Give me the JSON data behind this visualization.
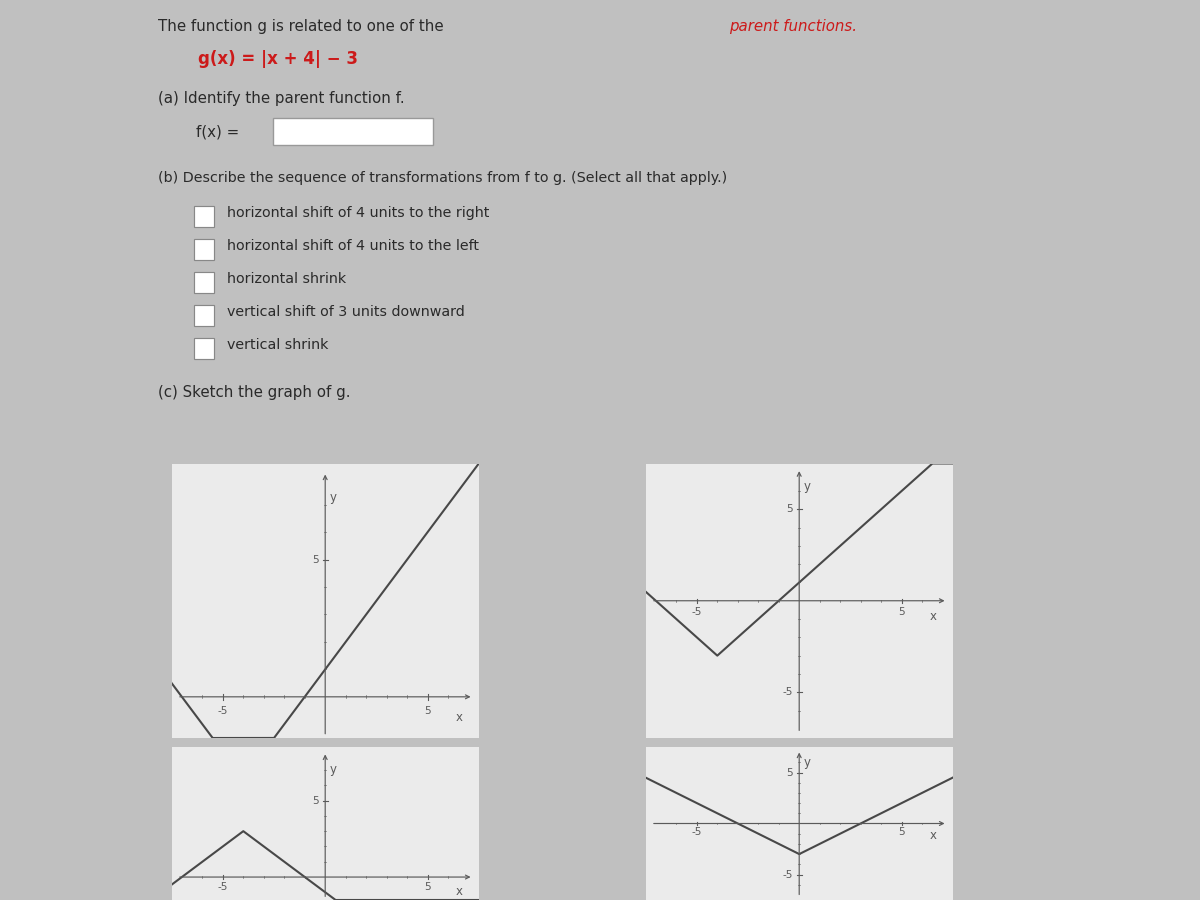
{
  "bg_outer": "#c0c0c0",
  "bg_content": "#ebebeb",
  "text_dark": "#2a2a2a",
  "text_red": "#cc1a1a",
  "axis_color": "#5a5a5a",
  "line_color": "#484848",
  "title_plain": "The function g is related to one of the ",
  "title_colored": "parent functions.",
  "formula": "g(x) = |x + 4| − 3",
  "part_a": "(a) Identify the parent function f.",
  "fx_eq": "f(x) =",
  "part_b": "(b) Describe the sequence of transformations from f to g. (Select all that apply.)",
  "checkboxes": [
    "horizontal shift of 4 units to the right",
    "horizontal shift of 4 units to the left",
    "horizontal shrink",
    "vertical shift of 3 units downward",
    "vertical shrink"
  ],
  "part_c": "(c) Sketch the graph of g.",
  "xlim": [
    -7.5,
    7.5
  ],
  "ylim": [
    -7.5,
    7.5
  ],
  "major_ticks": [
    -5,
    5
  ],
  "graph1_func": "abs_shifted",
  "graph2_func": "abs_shifted_also",
  "graph3_func": "cross_lines",
  "graph4_func": "steep_down"
}
